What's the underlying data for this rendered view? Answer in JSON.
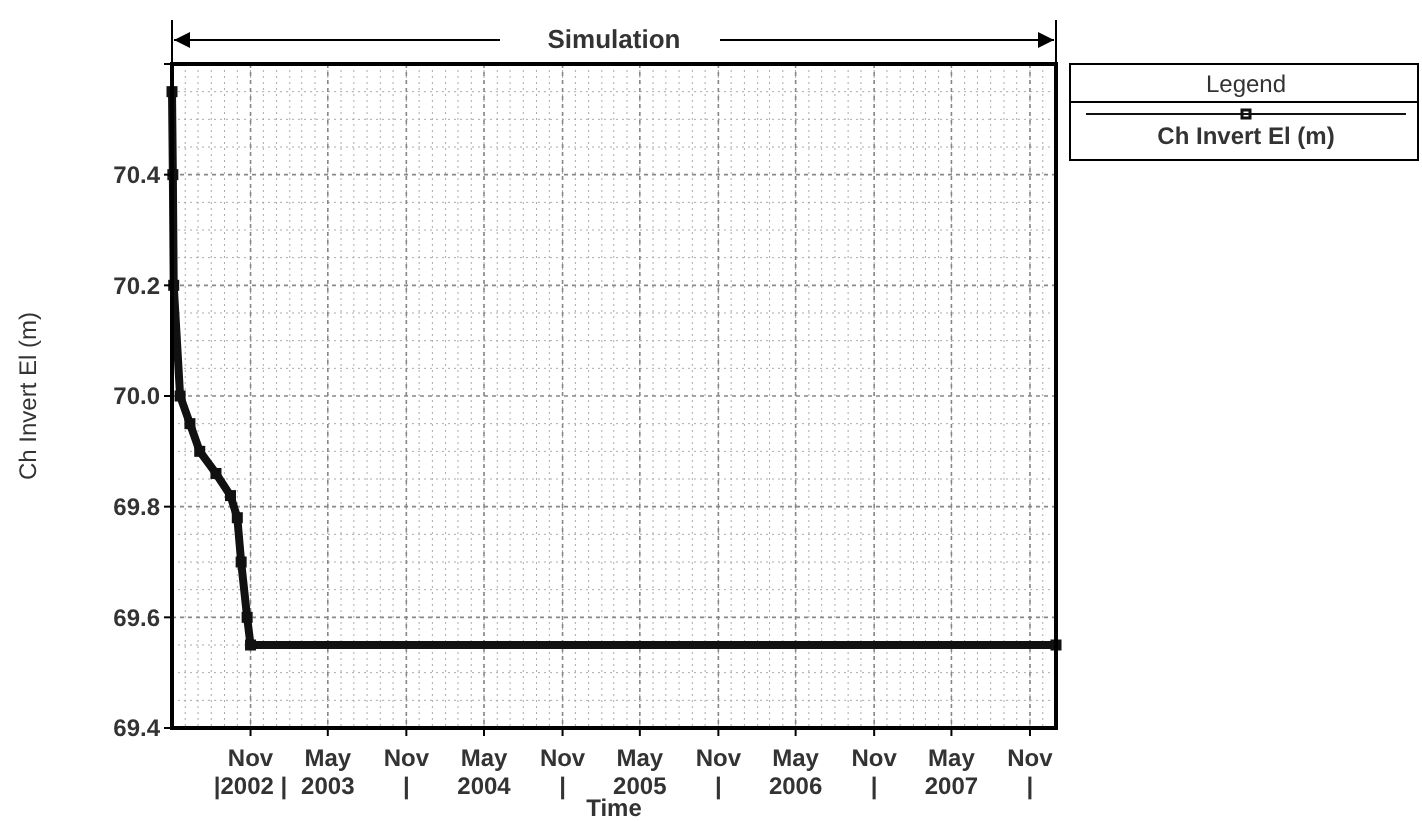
{
  "chart_data": {
    "type": "line",
    "title": "Simulation",
    "xlabel": "Time",
    "ylabel": "Ch Invert El (m)",
    "legend_title": "Legend",
    "legend": "top right",
    "grid": true,
    "marker": "square",
    "line_style": "solid",
    "xlim": [
      "2002-05-01",
      "2008-01-01"
    ],
    "ylim": [
      69.4,
      70.6
    ],
    "yticks": [
      69.4,
      69.6,
      69.8,
      {
        "value": 70,
        "label": "70.0"
      },
      70.2,
      70.4,
      {
        "value": 70.6,
        "label": null
      }
    ],
    "xticks": [
      {
        "value": "2002-11-01",
        "label": "Nov\n|2002 |"
      },
      {
        "value": "2003-05-01",
        "label": "May\n2003"
      },
      {
        "value": "2003-11-01",
        "label": "Nov\n|"
      },
      {
        "value": "2004-05-01",
        "label": "May\n2004"
      },
      {
        "value": "2004-11-01",
        "label": "Nov\n|"
      },
      {
        "value": "2005-05-01",
        "label": "May\n2005"
      },
      {
        "value": "2005-11-01",
        "label": "Nov\n|"
      },
      {
        "value": "2006-05-01",
        "label": "May\n2006"
      },
      {
        "value": "2006-11-01",
        "label": "Nov\n|"
      },
      {
        "value": "2007-05-01",
        "label": "May\n2007"
      },
      {
        "value": "2007-11-01",
        "label": "Nov\n|"
      }
    ],
    "series": [
      {
        "name": "Ch Invert El (m)",
        "color": "#111111",
        "x": [
          "2002-05-01",
          "2002-05-03",
          "2002-05-05",
          "2002-05-20",
          "2002-06-12",
          "2002-07-05",
          "2002-08-12",
          "2002-09-15",
          "2002-10-01",
          "2002-10-10",
          "2002-10-24",
          "2002-11-01",
          "2008-01-01"
        ],
        "values": [
          70.55,
          70.4,
          70.2,
          70.0,
          69.95,
          69.9,
          69.86,
          69.82,
          69.78,
          69.7,
          69.6,
          69.55,
          69.55
        ]
      }
    ]
  }
}
